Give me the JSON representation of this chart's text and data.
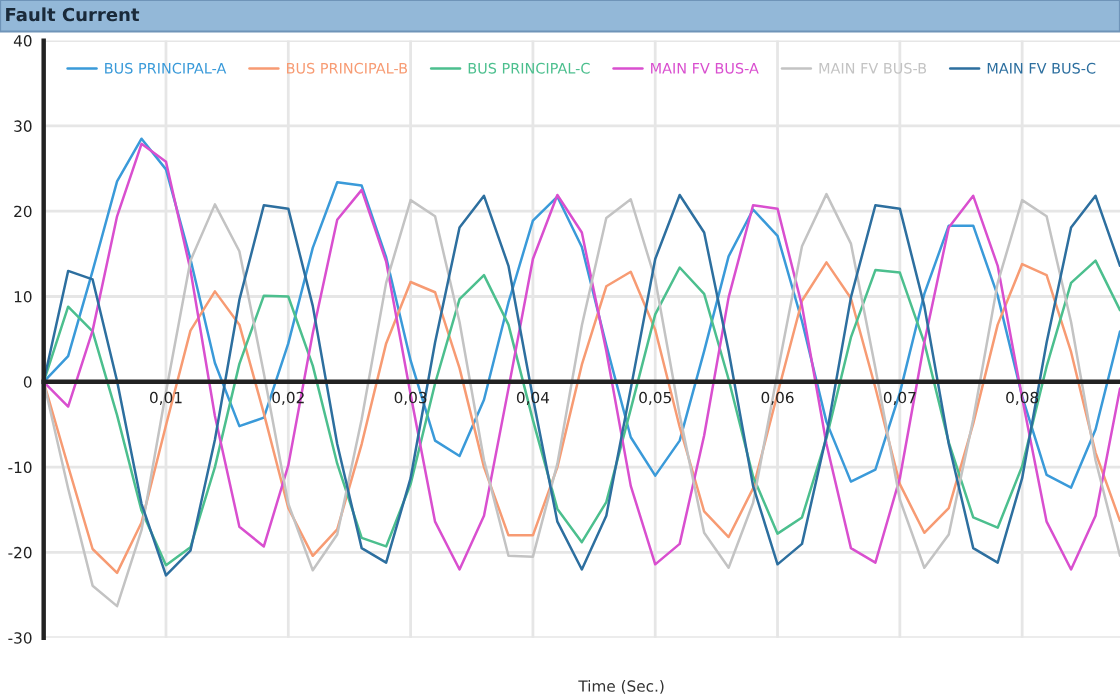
{
  "chart_data": {
    "type": "line",
    "title": "Fault Current",
    "xlabel": "Time (Sec.)",
    "x": [
      0,
      0.002,
      0.004,
      0.006,
      0.008,
      0.01,
      0.012,
      0.014,
      0.016,
      0.018,
      0.02,
      0.022,
      0.024,
      0.026,
      0.028,
      0.03,
      0.032,
      0.034,
      0.036,
      0.038,
      0.04,
      0.042,
      0.044,
      0.046,
      0.048,
      0.05,
      0.052,
      0.054,
      0.056,
      0.058,
      0.06,
      0.062,
      0.064,
      0.066,
      0.068,
      0.07,
      0.072,
      0.074,
      0.076,
      0.078,
      0.08,
      0.082,
      0.084,
      0.086,
      0.088
    ],
    "series": [
      {
        "name": "BUS PRINCIPAL-A",
        "color": "#3a9ad9",
        "values": [
          0,
          3.0,
          13.0,
          23.5,
          28.5,
          24.9,
          14.4,
          2.2,
          -5.2,
          -4.2,
          4.5,
          15.7,
          23.4,
          23.0,
          14.6,
          2.5,
          -6.9,
          -8.7,
          -2.1,
          9.3,
          18.9,
          21.7,
          15.8,
          4.3,
          -6.5,
          -11.0,
          -6.9,
          3.6,
          14.7,
          20.2,
          17.1,
          7.1,
          -4.7,
          -11.7,
          -10.3,
          -1.3,
          10.3,
          18.3,
          18.3,
          10.1,
          -1.7,
          -10.9,
          -12.4,
          -5.6,
          5.9
        ]
      },
      {
        "name": "BUS PRINCIPAL-B",
        "color": "#f79b73",
        "values": [
          0,
          -9.9,
          -19.6,
          -22.4,
          -16.5,
          -5.1,
          6.0,
          10.6,
          6.7,
          -3.7,
          -14.8,
          -20.4,
          -17.3,
          -7.3,
          4.5,
          11.7,
          10.5,
          1.6,
          -10.0,
          -18.0,
          -18.0,
          -10.0,
          2.0,
          11.2,
          12.9,
          6.1,
          -5.3,
          -15.2,
          -18.2,
          -12.5,
          -1.4,
          9.5,
          14.0,
          9.8,
          -0.7,
          -12.0,
          -17.7,
          -14.8,
          -4.9,
          6.7,
          13.8,
          12.5,
          3.5,
          -8.3,
          -16.3
        ]
      },
      {
        "name": "BUS PRINCIPAL-C",
        "color": "#4cbf8e",
        "values": [
          0,
          8.8,
          5.9,
          -3.9,
          -15.1,
          -21.5,
          -19.4,
          -10.0,
          2.1,
          10.1,
          10.0,
          1.9,
          -9.6,
          -18.3,
          -19.3,
          -12.0,
          -0.2,
          9.7,
          12.5,
          6.7,
          -4.5,
          -14.9,
          -18.8,
          -14.1,
          -3.2,
          7.9,
          13.4,
          10.3,
          0.3,
          -11.1,
          -17.8,
          -15.9,
          -6.6,
          5.2,
          13.1,
          12.8,
          4.6,
          -7.1,
          -15.9,
          -17.1,
          -9.9,
          1.8,
          11.6,
          14.2,
          8.4
        ]
      },
      {
        "name": "MAIN FV BUS-A",
        "color": "#d94fcf",
        "values": [
          0,
          -2.9,
          6.0,
          19.4,
          27.9,
          25.8,
          13.1,
          -4.0,
          -17.0,
          -19.3,
          -9.8,
          5.7,
          19.0,
          22.5,
          14.1,
          -1.5,
          -16.4,
          -22.0,
          -15.7,
          -0.8,
          14.4,
          21.9,
          17.5,
          3.6,
          -12.2,
          -21.4,
          -19.0,
          -6.3,
          9.9,
          20.7,
          20.3,
          8.9,
          -7.3,
          -19.5,
          -21.2,
          -11.3,
          4.6,
          18.1,
          21.8,
          13.6,
          -1.9,
          -16.4,
          -22.0,
          -15.7,
          -0.8
        ]
      },
      {
        "name": "MAIN FV BUS-B",
        "color": "#c3c3c3",
        "values": [
          0,
          -12.5,
          -23.9,
          -26.3,
          -17.4,
          -1.2,
          14.2,
          20.8,
          15.3,
          1.0,
          -14.3,
          -22.1,
          -17.9,
          -4.4,
          11.6,
          21.3,
          19.4,
          7.0,
          -9.2,
          -20.4,
          -20.5,
          -9.6,
          6.6,
          19.2,
          21.4,
          12.0,
          -3.9,
          -17.7,
          -21.8,
          -14.2,
          1.1,
          15.9,
          22.0,
          16.2,
          1.6,
          -13.8,
          -21.8,
          -17.9,
          -4.4,
          11.6,
          21.3,
          19.4,
          7.0,
          -9.2,
          -20.4
        ]
      },
      {
        "name": "MAIN FV BUS-C",
        "color": "#2d6f9f",
        "values": [
          0,
          13.0,
          12.0,
          0.1,
          -14.3,
          -22.7,
          -19.8,
          -6.8,
          9.6,
          20.7,
          20.3,
          8.9,
          -7.3,
          -19.5,
          -21.2,
          -11.3,
          4.6,
          18.1,
          21.8,
          13.6,
          -1.9,
          -16.4,
          -22.0,
          -15.7,
          -0.8,
          14.4,
          21.9,
          17.5,
          3.6,
          -12.2,
          -21.4,
          -19.0,
          -6.3,
          9.9,
          20.7,
          20.3,
          8.9,
          -7.3,
          -19.5,
          -21.2,
          -11.3,
          4.6,
          18.1,
          21.8,
          13.6
        ]
      }
    ],
    "xlim": [
      0,
      0.088
    ],
    "ylim": [
      -30,
      40
    ],
    "xticks": [
      {
        "value": 0.01,
        "label": "0,01"
      },
      {
        "value": 0.02,
        "label": "0,02"
      },
      {
        "value": 0.03,
        "label": "0,03"
      },
      {
        "value": 0.04,
        "label": "0,04"
      },
      {
        "value": 0.05,
        "label": "0,05"
      },
      {
        "value": 0.06,
        "label": "0,06"
      },
      {
        "value": 0.07,
        "label": "0,07"
      },
      {
        "value": 0.08,
        "label": "0,08"
      }
    ],
    "yticks": [
      -30,
      -20,
      -10,
      0,
      10,
      20,
      30,
      40
    ],
    "grid": true,
    "legend": "top",
    "marker": "none",
    "line_style": "solid"
  }
}
